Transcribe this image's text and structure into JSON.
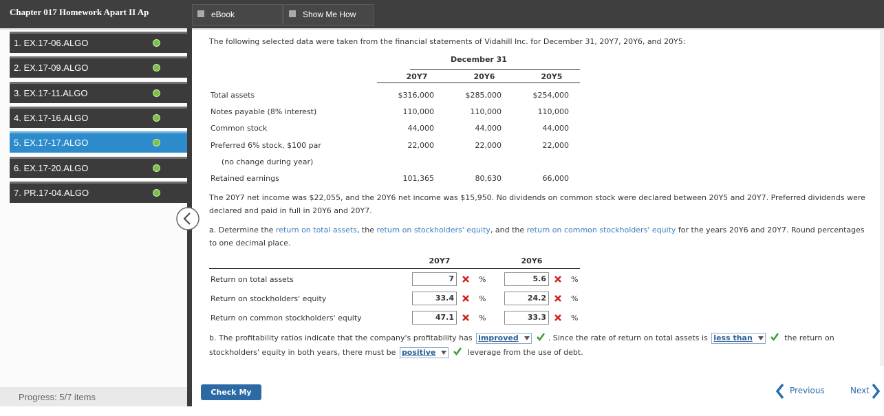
{
  "header": {
    "title": "Chapter 017 Homework Apart II Ap"
  },
  "tabs": [
    "eBook",
    "Show Me How"
  ],
  "sidebar": {
    "items": [
      "1. EX.17-06.ALGO",
      "2. EX.17-09.ALGO",
      "3. EX.17-11.ALGO",
      "4. EX.17-16.ALGO",
      "5. EX.17-17.ALGO",
      "6. EX.17-20.ALGO",
      "7. PR.17-04.ALGO"
    ],
    "selected": 4,
    "progress": "Progress: 5/7 items"
  },
  "intro": "The following selected data were taken from the financial statements of Vidahill Inc. for December 31, 20Y7, 20Y6, and 20Y5:",
  "data_table": {
    "group_header": "December 31",
    "columns": [
      "20Y7",
      "20Y6",
      "20Y5"
    ],
    "rows": [
      [
        "Total assets",
        "$316,000",
        "$285,000",
        "$254,000"
      ],
      [
        "Notes payable (8% interest)",
        "110,000",
        "110,000",
        "110,000"
      ],
      [
        "Common stock",
        "44,000",
        "44,000",
        "44,000"
      ],
      [
        "Preferred 6% stock, $100 par",
        "22,000",
        "22,000",
        "22,000"
      ],
      [
        "(no change during year)"
      ],
      [
        "Retained earnings",
        "101,365",
        "80,630",
        "66,000"
      ]
    ]
  },
  "paragraph": "The 20Y7 net income was $22,055, and the 20Y6 net income was $15,950. No dividends on common stock were declared between 20Y5 and 20Y7. Preferred dividends were declared and paid in full in 20Y6 and 20Y7.",
  "part_a": [
    {
      "text": "a. Determine the "
    },
    {
      "text": "return on total assets",
      "link": true
    },
    {
      "text": ", the "
    },
    {
      "text": "return on stockholders' equity",
      "link": true
    },
    {
      "text": ", and the "
    },
    {
      "text": "return on common stockholders' equity",
      "link": true
    },
    {
      "text": " for the years 20Y6 and 20Y7. Round percentages to one decimal place."
    }
  ],
  "answers": {
    "columns": [
      "20Y7",
      "20Y6"
    ],
    "unit": "%",
    "rows": [
      {
        "label": "Return on total assets",
        "values": [
          {
            "value": 7,
            "correct": false
          },
          {
            "value": 5.6,
            "correct": false
          }
        ]
      },
      {
        "label": "Return on stockholders' equity",
        "values": [
          {
            "value": 33.4,
            "correct": false
          },
          {
            "value": 24.2,
            "correct": false
          }
        ]
      },
      {
        "label": "Return on common stockholders' equity",
        "values": [
          {
            "value": 47.1,
            "correct": false
          },
          {
            "value": 33.3,
            "correct": false
          }
        ]
      }
    ]
  },
  "part_b": [
    {
      "text": "b. The profitability ratios indicate that the company's profitability has "
    },
    {
      "text": "improved",
      "dropdown": true,
      "correct": true
    },
    {
      "text": ". Since the rate of return on total assets is "
    },
    {
      "text": "less than",
      "dropdown": true,
      "correct": true
    },
    {
      "text": " the return on stockholders' equity in both years, there must be "
    },
    {
      "text": "positive",
      "dropdown": true,
      "correct": true
    },
    {
      "text": " leverage from the use of debt."
    }
  ],
  "buttons": {
    "check": "Check My Work",
    "previous": "Previous",
    "next": "Next"
  }
}
